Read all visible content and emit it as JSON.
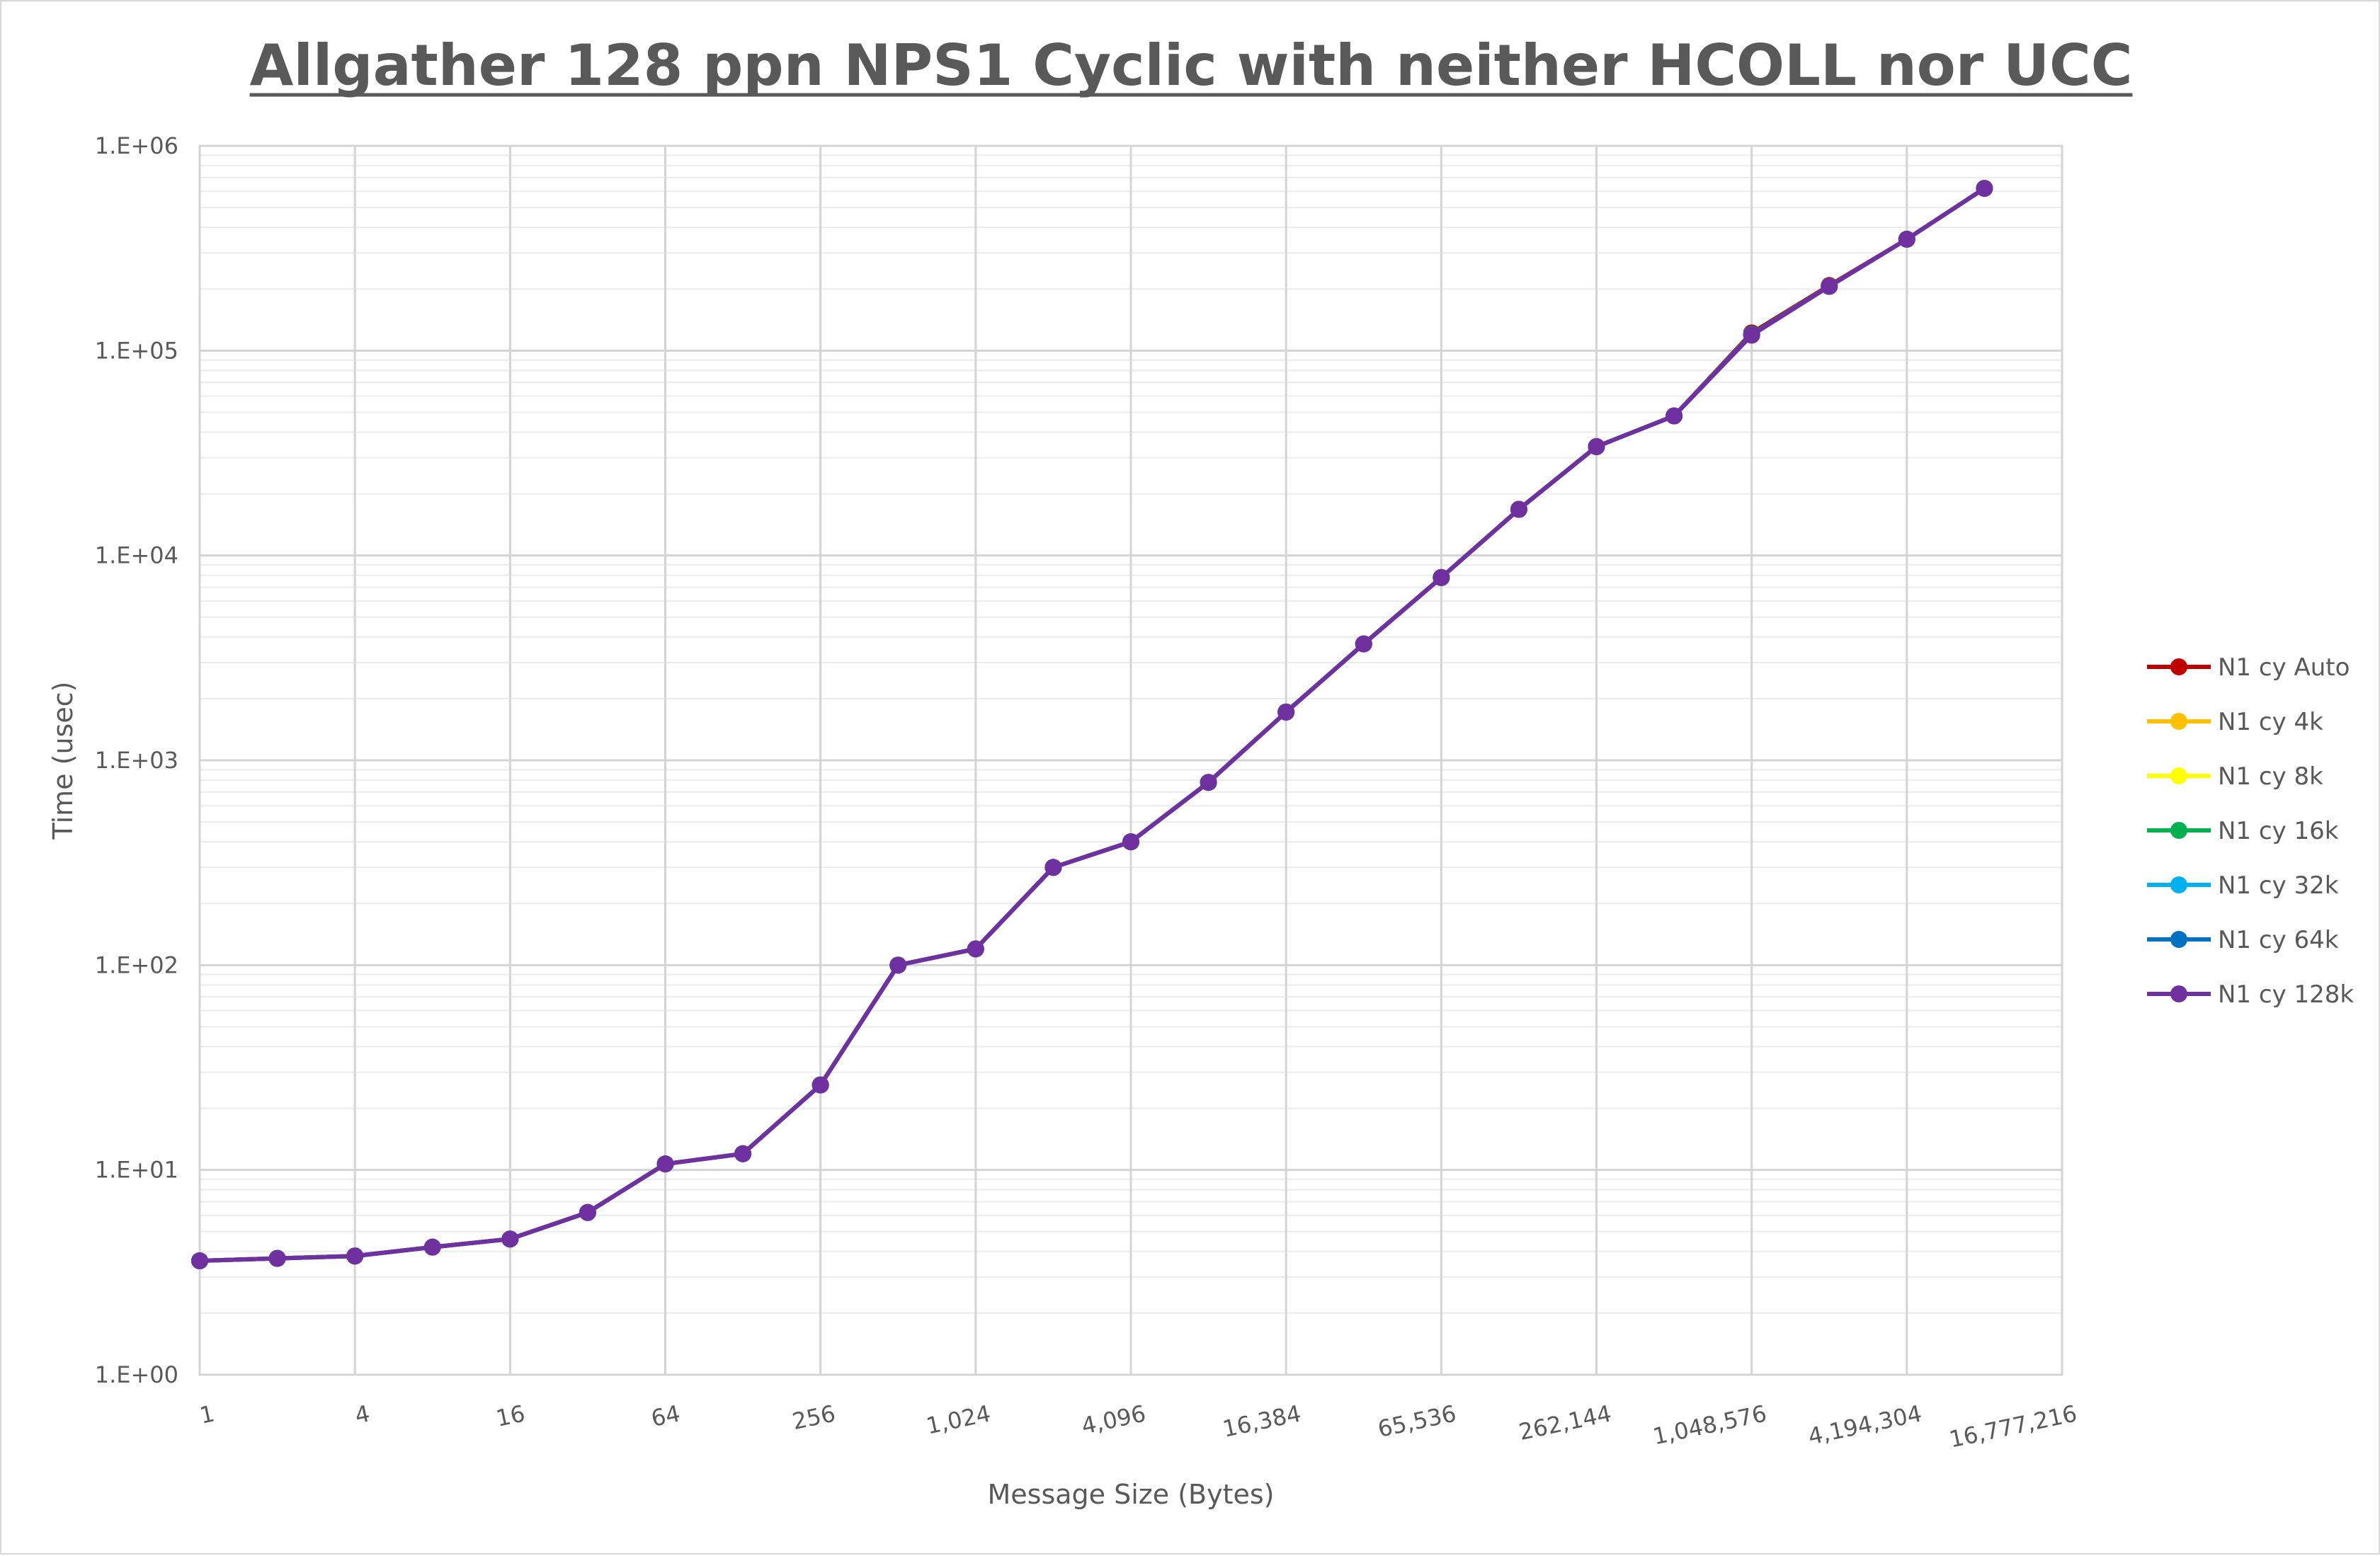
{
  "chart_data": {
    "type": "line",
    "title": "Allgather 128 ppn NPS1 Cyclic with neither HCOLL nor UCC",
    "xlabel": "Message Size (Bytes)",
    "ylabel": "Time (usec)",
    "x_scale": "log2",
    "y_scale": "log10",
    "xlim": [
      1,
      16777216
    ],
    "ylim": [
      1,
      1000000
    ],
    "x_tick_values": [
      1,
      4,
      16,
      64,
      256,
      1024,
      4096,
      16384,
      65536,
      262144,
      1048576,
      4194304,
      16777216
    ],
    "x_tick_labels": [
      "1",
      "4",
      "16",
      "64",
      "256",
      "1,024",
      "4,096",
      "16,384",
      "65,536",
      "262,144",
      "1,048,576",
      "4,194,304",
      "16,777,216"
    ],
    "y_tick_values": [
      1,
      10,
      100,
      1000,
      10000,
      100000,
      1000000
    ],
    "y_tick_labels": [
      "1.E+00",
      "1.E+01",
      "1.E+02",
      "1.E+03",
      "1.E+04",
      "1.E+05",
      "1.E+06"
    ],
    "grid": true,
    "legend_position": "right",
    "x": [
      1,
      2,
      4,
      8,
      16,
      32,
      64,
      128,
      256,
      512,
      1024,
      2048,
      4096,
      8192,
      16384,
      32768,
      65536,
      131072,
      262144,
      524288,
      1048576,
      2097152,
      4194304,
      8388608
    ],
    "series": [
      {
        "name": "N1 cy Auto",
        "color": "#c00000",
        "values": [
          3.6,
          3.7,
          3.8,
          4.2,
          4.6,
          6.2,
          10.7,
          12.0,
          26,
          100,
          120,
          300,
          400,
          780,
          1720,
          3700,
          7800,
          16800,
          34000,
          48000,
          122000,
          208000,
          350000,
          620000
        ]
      },
      {
        "name": "N1 cy 4k",
        "color": "#ffc000",
        "values": [
          3.6,
          3.7,
          3.8,
          4.2,
          4.6,
          6.2,
          10.7,
          12.0,
          26,
          100,
          120,
          300,
          400,
          780,
          1720,
          3700,
          7800,
          16800,
          34000,
          48000,
          120000,
          206000,
          350000,
          620000
        ]
      },
      {
        "name": "N1 cy 8k",
        "color": "#ffff00",
        "values": [
          3.6,
          3.7,
          3.8,
          4.2,
          4.6,
          6.2,
          10.7,
          12.0,
          26,
          100,
          120,
          300,
          400,
          780,
          1720,
          3700,
          7800,
          16800,
          34000,
          48000,
          120000,
          206000,
          350000,
          620000
        ]
      },
      {
        "name": "N1 cy 16k",
        "color": "#00b050",
        "values": [
          3.6,
          3.7,
          3.8,
          4.2,
          4.6,
          6.2,
          10.7,
          12.0,
          26,
          100,
          120,
          300,
          400,
          780,
          1720,
          3700,
          7800,
          16800,
          34000,
          48000,
          120000,
          206000,
          350000,
          620000
        ]
      },
      {
        "name": "N1 cy 32k",
        "color": "#00b0f0",
        "values": [
          3.6,
          3.7,
          3.8,
          4.2,
          4.6,
          6.2,
          10.7,
          12.0,
          26,
          100,
          120,
          300,
          400,
          780,
          1720,
          3700,
          7800,
          16800,
          34000,
          48000,
          120000,
          206000,
          350000,
          620000
        ]
      },
      {
        "name": "N1 cy 64k",
        "color": "#0070c0",
        "values": [
          3.6,
          3.7,
          3.8,
          4.2,
          4.6,
          6.2,
          10.7,
          12.0,
          26,
          100,
          120,
          300,
          400,
          780,
          1720,
          3700,
          7800,
          16800,
          34000,
          48000,
          120000,
          206000,
          350000,
          620000
        ]
      },
      {
        "name": "N1 cy 128k",
        "color": "#7030a0",
        "values": [
          3.6,
          3.7,
          3.8,
          4.2,
          4.6,
          6.2,
          10.7,
          12.0,
          26,
          100,
          120,
          300,
          400,
          780,
          1720,
          3700,
          7800,
          16800,
          34000,
          48000,
          119000,
          206000,
          350000,
          620000
        ]
      }
    ]
  }
}
